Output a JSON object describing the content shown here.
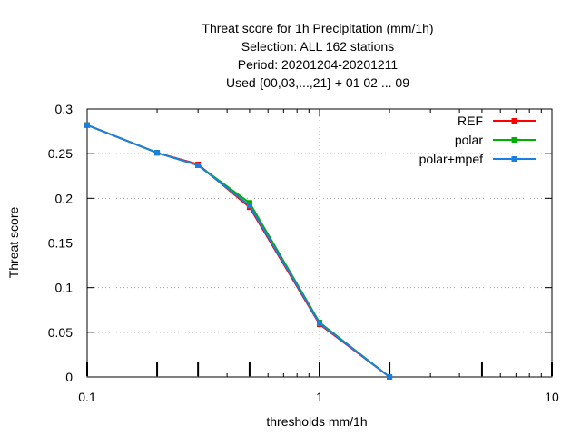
{
  "chart_data": {
    "type": "line",
    "title_lines": [
      "Threat score  for 1h Precipitation (mm/1h)",
      "Selection: ALL    162 stations",
      "Period: 20201204-20201211",
      "Used {00,03,...,21} + 01 02 ... 09"
    ],
    "xlabel": "thresholds mm/1h",
    "ylabel": "Threat score",
    "x_scale": "log",
    "xlim": [
      0.1,
      10
    ],
    "ylim": [
      0,
      0.3
    ],
    "x_tick_values": [
      0.1,
      1,
      10
    ],
    "x_tick_labels": [
      "0.1",
      "1",
      "10"
    ],
    "y_tick_values": [
      0,
      0.05,
      0.1,
      0.15,
      0.2,
      0.25,
      0.3
    ],
    "y_tick_labels": [
      "0",
      "0.05",
      "0.1",
      "0.15",
      "0.2",
      "0.25",
      "0.3"
    ],
    "threshold_marks": [
      0.1,
      0.2,
      0.3,
      0.5,
      1,
      2,
      5,
      10
    ],
    "grid": true,
    "legend_position": "top-right",
    "x": [
      0.1,
      0.2,
      0.3,
      0.5,
      1,
      2
    ],
    "series": [
      {
        "name": "REF",
        "color": "#ff0000",
        "values": [
          0.282,
          0.251,
          0.238,
          0.19,
          0.059,
          0.0
        ]
      },
      {
        "name": "polar",
        "color": "#00b000",
        "values": [
          0.282,
          0.251,
          0.237,
          0.195,
          0.061,
          0.0
        ]
      },
      {
        "name": "polar+mpef",
        "color": "#1a7fe0",
        "values": [
          0.282,
          0.251,
          0.237,
          0.192,
          0.06,
          0.0
        ]
      }
    ]
  }
}
